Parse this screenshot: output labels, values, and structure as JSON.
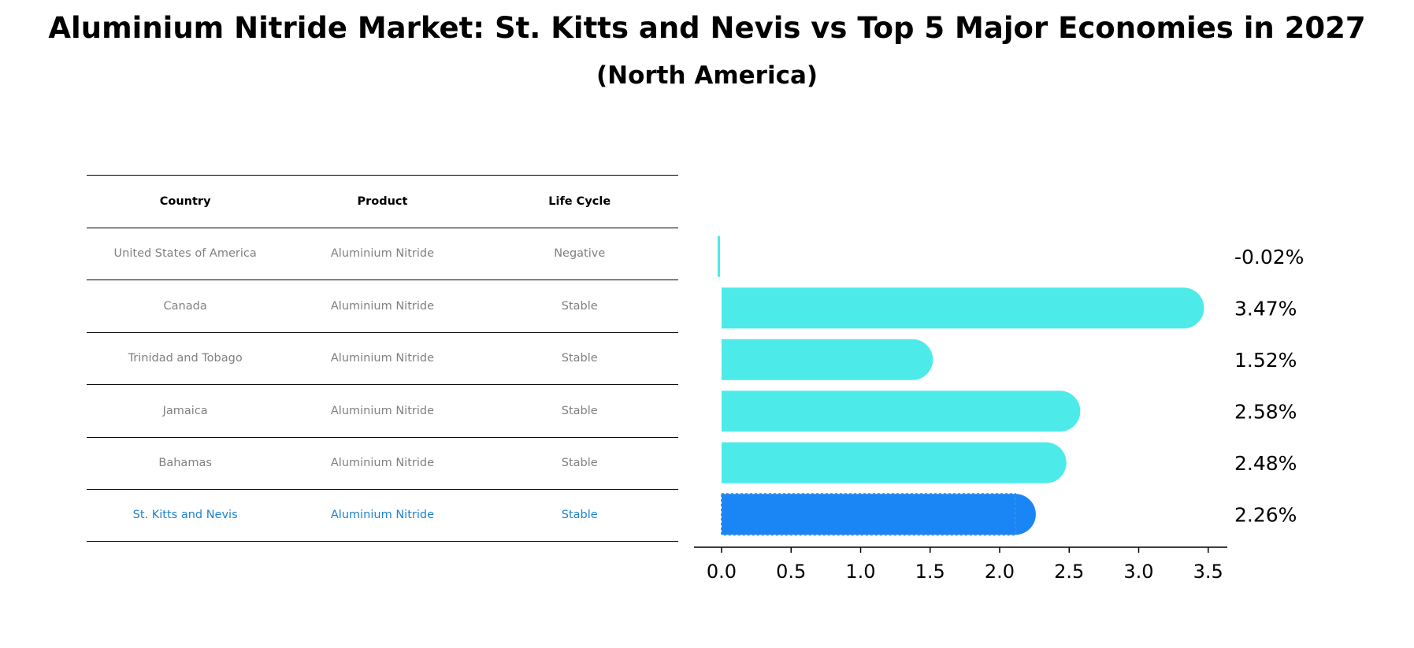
{
  "title": "Aluminium Nitride Market: St. Kitts and Nevis vs Top 5 Major Economies in 2027",
  "subtitle": "(North America)",
  "table": {
    "headers": [
      "Country",
      "Product",
      "Life Cycle"
    ],
    "rows": [
      [
        "United States of America",
        "Aluminium Nitride",
        "Negative"
      ],
      [
        "Canada",
        "Aluminium Nitride",
        "Stable"
      ],
      [
        "Trinidad and Tobago",
        "Aluminium Nitride",
        "Stable"
      ],
      [
        "Jamaica",
        "Aluminium Nitride",
        "Stable"
      ],
      [
        "Bahamas",
        "Aluminium Nitride",
        "Stable"
      ],
      [
        "St. Kitts and Nevis",
        "Aluminium Nitride",
        "Stable"
      ]
    ]
  },
  "chart_data": {
    "type": "bar",
    "orientation": "horizontal",
    "categories": [
      "United States of America",
      "Canada",
      "Trinidad and Tobago",
      "Jamaica",
      "Bahamas",
      "St. Kitts and Nevis"
    ],
    "values": [
      -0.02,
      3.47,
      1.52,
      2.58,
      2.48,
      2.26
    ],
    "value_labels": [
      "-0.02%",
      "3.47%",
      "1.52%",
      "2.58%",
      "2.48%",
      "2.26%"
    ],
    "highlight_index": 5,
    "xticks": [
      "0.0",
      "0.5",
      "1.0",
      "1.5",
      "2.0",
      "2.5",
      "3.0",
      "3.5"
    ],
    "xlim": [
      -0.2,
      3.65
    ],
    "colors": {
      "default": "#4deaea",
      "highlight": "#1a86f5"
    }
  }
}
